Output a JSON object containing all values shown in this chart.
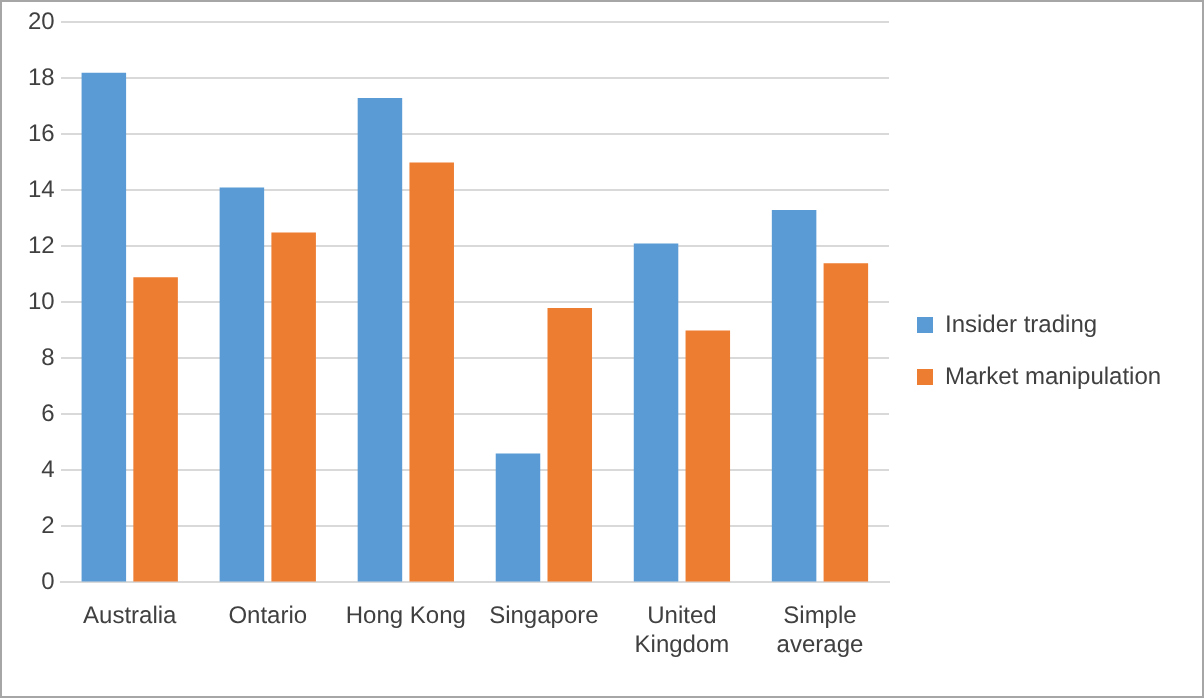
{
  "chart_data": {
    "type": "bar",
    "categories": [
      "Australia",
      "Ontario",
      "Hong Kong",
      "Singapore",
      "United Kingdom",
      "Simple average"
    ],
    "series": [
      {
        "name": "Insider trading",
        "color": "#5b9bd5",
        "values": [
          18.2,
          14.1,
          17.3,
          4.6,
          12.1,
          13.3
        ]
      },
      {
        "name": "Market manipulation",
        "color": "#ed7d31",
        "values": [
          10.9,
          12.5,
          15.0,
          9.8,
          9.0,
          11.4
        ]
      }
    ],
    "ylim": [
      0,
      20
    ],
    "yticks": [
      0,
      2,
      4,
      6,
      8,
      10,
      12,
      14,
      16,
      18,
      20
    ],
    "grid": "y",
    "legend": "right"
  }
}
